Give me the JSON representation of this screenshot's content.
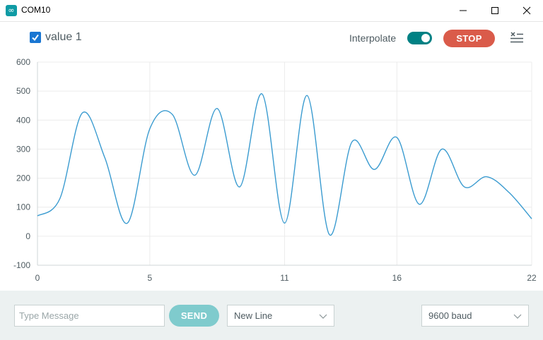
{
  "window": {
    "title": "COM10",
    "icon": "infinity-icon"
  },
  "legend": {
    "series_label": "value 1",
    "checked": true
  },
  "controls": {
    "interpolate_label": "Interpolate",
    "interpolate_on": true,
    "stop_label": "STOP"
  },
  "colors": {
    "series": "#3a9bd0",
    "accent": "#008184",
    "stop": "#da5b4a",
    "send": "#7fcbcd",
    "bottom_bar": "#ecf1f1"
  },
  "bottom": {
    "message_placeholder": "Type Message",
    "send_label": "SEND",
    "line_ending": "New Line",
    "baud": "9600 baud"
  },
  "chart_data": {
    "type": "line",
    "title": "",
    "xlabel": "",
    "ylabel": "",
    "xlim": [
      0,
      22
    ],
    "ylim": [
      -100,
      600
    ],
    "x_ticks": [
      0,
      5,
      11,
      16,
      22
    ],
    "y_ticks": [
      -100,
      0,
      100,
      200,
      300,
      400,
      500,
      600
    ],
    "grid": true,
    "series": [
      {
        "values": [
          70,
          130,
          425,
          270,
          45,
          370,
          420,
          210,
          440,
          170,
          490,
          45,
          485,
          5,
          325,
          230,
          340,
          110,
          300,
          170,
          205,
          150,
          60
        ]
      }
    ]
  }
}
